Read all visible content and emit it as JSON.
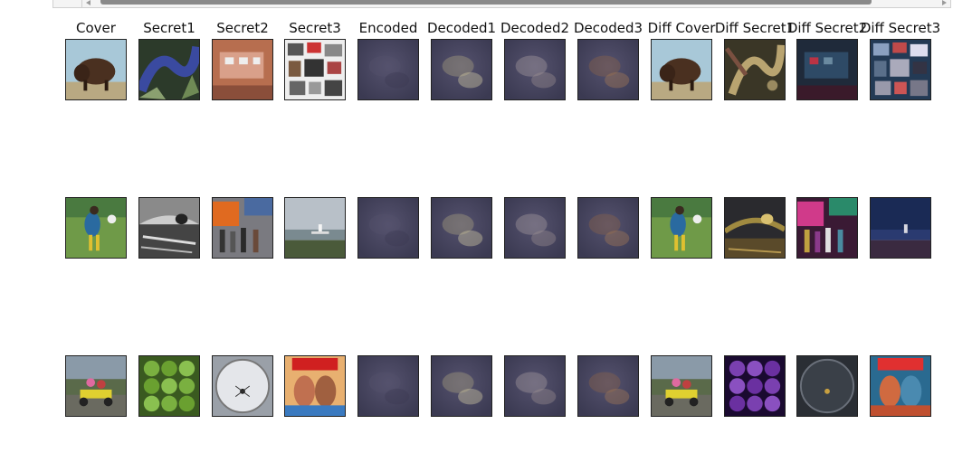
{
  "window": {
    "has_horizontal_scrollbar": true
  },
  "columns": [
    {
      "label": "Cover"
    },
    {
      "label": "Secret1"
    },
    {
      "label": "Secret2"
    },
    {
      "label": "Secret3"
    },
    {
      "label": "Encoded"
    },
    {
      "label": "Decoded1"
    },
    {
      "label": "Decoded2"
    },
    {
      "label": "Decoded3"
    },
    {
      "label": "Diff Cover"
    },
    {
      "label": "Diff Secret1"
    },
    {
      "label": "Diff Secret2"
    },
    {
      "label": "Diff Secret3"
    }
  ],
  "rows": [
    [
      "bison",
      "blue-snake",
      "brick-building",
      "collage",
      "encoded-navy",
      "decoded-beige",
      "decoded-mauve",
      "decoded-brown",
      "bison",
      "diff-olive",
      "diff-dark-red",
      "diff-collage-blue"
    ],
    [
      "dancer-field",
      "bw-seal",
      "street-crowd",
      "coast-lighthouse",
      "encoded-navy",
      "decoded-beige",
      "decoded-mauve",
      "decoded-brown",
      "dancer-field",
      "diff-gold-dark",
      "diff-magenta",
      "diff-navy-coast"
    ],
    [
      "gokart-kids",
      "green-peppers",
      "petri-dish",
      "mad-cover",
      "encoded-navy",
      "decoded-beige",
      "decoded-mauve",
      "decoded-brown",
      "gokart-kids",
      "diff-purple-peppers",
      "diff-dark-dish",
      "diff-mad-cover"
    ]
  ],
  "colors": {
    "encoded-navy": "#3b3a52",
    "decoded-beige": "#d8cfa8",
    "decoded-mauve": "#9b8e90",
    "decoded-brown": "#a87a55"
  }
}
